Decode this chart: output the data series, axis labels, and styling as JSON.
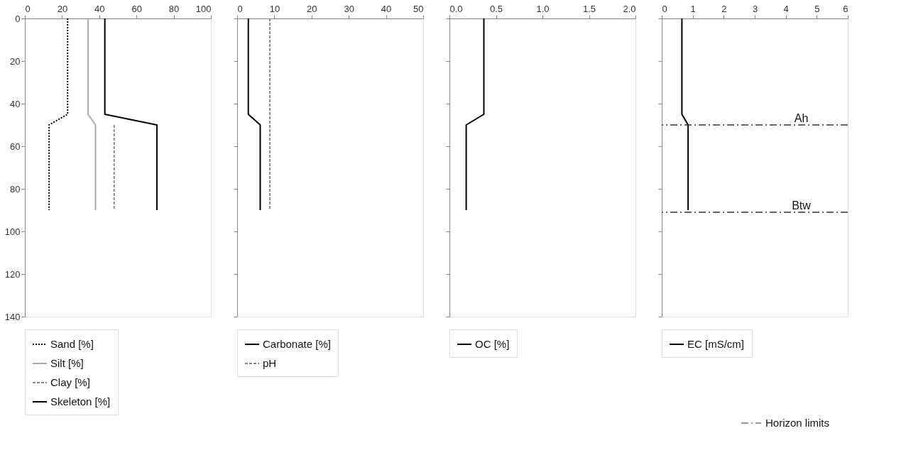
{
  "chart_data": [
    {
      "type": "line",
      "xlim": [
        0,
        100
      ],
      "xticks": [
        0,
        20,
        40,
        60,
        80,
        100
      ],
      "ylim": [
        140,
        0
      ],
      "yticks": [
        0,
        20,
        40,
        60,
        80,
        100,
        120,
        140
      ],
      "grid": false,
      "legend": "bottom",
      "series": [
        {
          "name": "Sand [%]",
          "color": "#000000",
          "line_style": "dotted",
          "x": [
            23,
            23,
            13,
            13
          ],
          "values": [
            0,
            45,
            50,
            90
          ]
        },
        {
          "name": "Silt [%]",
          "color": "#aaaaaa",
          "line_style": "solid",
          "x": [
            34,
            34,
            38,
            38
          ],
          "values": [
            0,
            45,
            50,
            90
          ]
        },
        {
          "name": "Clay [%]",
          "color": "#888888",
          "line_style": "dashed",
          "x": [
            48,
            48
          ],
          "values": [
            50,
            90
          ]
        },
        {
          "name": "Skeleton [%]",
          "color": "#000000",
          "line_style": "solid",
          "x": [
            43,
            43,
            71,
            71
          ],
          "values": [
            0,
            45,
            50,
            90
          ]
        }
      ]
    },
    {
      "type": "line",
      "xlim": [
        0,
        50
      ],
      "xticks": [
        0,
        10,
        20,
        30,
        40,
        50
      ],
      "ylim": [
        140,
        0
      ],
      "yticks": [
        0,
        20,
        40,
        60,
        80,
        100,
        120,
        140
      ],
      "tick_labels": "x",
      "grid": false,
      "legend": "bottom",
      "series": [
        {
          "name": "Carbonate [%]",
          "color": "#000000",
          "line_style": "solid",
          "x": [
            3,
            3,
            6.2,
            6.2
          ],
          "values": [
            0,
            45,
            50,
            90
          ]
        },
        {
          "name": "pH",
          "color": "#888888",
          "line_style": "dashed",
          "x": [
            8.8,
            8.8
          ],
          "values": [
            0,
            90
          ]
        }
      ]
    },
    {
      "type": "line",
      "xlim": [
        0,
        2
      ],
      "xticks": [
        {
          "value": 0,
          "label": "0.0"
        },
        {
          "value": 0.5,
          "label": "0.5"
        },
        {
          "value": 1,
          "label": "1.0"
        },
        {
          "value": 1.5,
          "label": "1.5"
        },
        {
          "value": 2,
          "label": "2.0"
        }
      ],
      "ylim": [
        140,
        0
      ],
      "yticks": [
        0,
        20,
        40,
        60,
        80,
        100,
        120,
        140
      ],
      "tick_labels": "x",
      "grid": false,
      "legend": "bottom",
      "series": [
        {
          "name": "OC [%]",
          "color": "#000000",
          "line_style": "solid",
          "x": [
            0.37,
            0.37,
            0.18,
            0.18
          ],
          "values": [
            0,
            45,
            50,
            90
          ]
        }
      ]
    },
    {
      "type": "line",
      "xlim": [
        0,
        6
      ],
      "xticks": [
        0,
        1,
        2,
        3,
        4,
        5,
        6
      ],
      "ylim": [
        140,
        0
      ],
      "yticks": [
        0,
        20,
        40,
        60,
        80,
        100,
        120,
        140
      ],
      "tick_labels": "x",
      "grid": false,
      "legend": "bottom",
      "series": [
        {
          "name": "EC [mS/cm]",
          "color": "#000000",
          "line_style": "solid",
          "x": [
            0.65,
            0.65,
            0.85,
            0.85
          ],
          "values": [
            0,
            45,
            50,
            90
          ]
        }
      ],
      "ref_lines": [
        {
          "axis": "y",
          "value": 50,
          "label": "Ah",
          "color": "#333333",
          "line_style": "dashed"
        },
        {
          "axis": "y",
          "value": 91,
          "label": "Btw",
          "color": "#333333",
          "line_style": "dashed"
        }
      ],
      "annotations": [
        "Horizon limits"
      ]
    }
  ]
}
